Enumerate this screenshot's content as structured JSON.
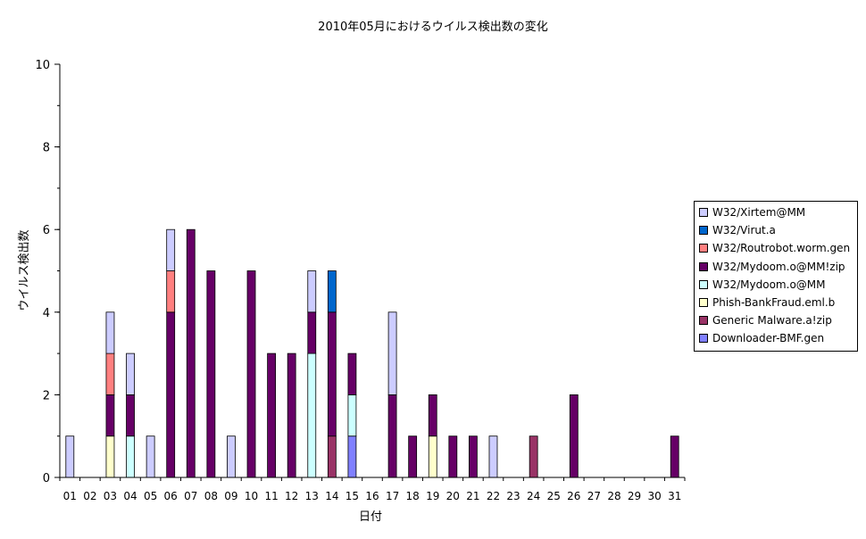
{
  "chart_data": {
    "type": "bar",
    "stacked": true,
    "title": "2010年05月におけるウイルス検出数の変化",
    "xlabel": "日付",
    "ylabel": "ウイルス検出数",
    "ylim": [
      0,
      10
    ],
    "yticks": [
      "0",
      "2",
      "4",
      "6",
      "8",
      "10"
    ],
    "grid": false,
    "legend_position": "right",
    "categories": [
      "01",
      "02",
      "03",
      "04",
      "05",
      "06",
      "07",
      "08",
      "09",
      "10",
      "11",
      "12",
      "13",
      "14",
      "15",
      "16",
      "17",
      "18",
      "19",
      "20",
      "21",
      "22",
      "23",
      "24",
      "25",
      "26",
      "27",
      "28",
      "29",
      "30",
      "31"
    ],
    "series": [
      {
        "name": "Downloader-BMF.gen",
        "color": "#8080ff",
        "values": [
          0,
          0,
          0,
          0,
          0,
          0,
          0,
          0,
          0,
          0,
          0,
          0,
          0,
          0,
          1,
          0,
          0,
          0,
          0,
          0,
          0,
          0,
          0,
          0,
          0,
          0,
          0,
          0,
          0,
          0,
          0
        ]
      },
      {
        "name": "Generic Malware.a!zip",
        "color": "#993366",
        "values": [
          0,
          0,
          0,
          0,
          0,
          0,
          0,
          0,
          0,
          0,
          0,
          0,
          0,
          1,
          0,
          0,
          0,
          0,
          0,
          0,
          0,
          0,
          0,
          1,
          0,
          0,
          0,
          0,
          0,
          0,
          0
        ]
      },
      {
        "name": "Phish-BankFraud.eml.b",
        "color": "#ffffcc",
        "values": [
          0,
          0,
          1,
          0,
          0,
          0,
          0,
          0,
          0,
          0,
          0,
          0,
          0,
          0,
          0,
          0,
          0,
          0,
          1,
          0,
          0,
          0,
          0,
          0,
          0,
          0,
          0,
          0,
          0,
          0,
          0
        ]
      },
      {
        "name": "W32/Mydoom.o@MM",
        "color": "#ccffff",
        "values": [
          0,
          0,
          0,
          1,
          0,
          0,
          0,
          0,
          0,
          0,
          0,
          0,
          3,
          0,
          1,
          0,
          0,
          0,
          0,
          0,
          0,
          0,
          0,
          0,
          0,
          0,
          0,
          0,
          0,
          0,
          0
        ]
      },
      {
        "name": "W32/Mydoom.o@MM!zip",
        "color": "#660066",
        "values": [
          0,
          0,
          1,
          1,
          0,
          4,
          6,
          5,
          0,
          5,
          3,
          3,
          1,
          3,
          1,
          0,
          2,
          1,
          1,
          1,
          1,
          0,
          0,
          0,
          0,
          2,
          0,
          0,
          0,
          0,
          1
        ]
      },
      {
        "name": "W32/Routrobot.worm.gen",
        "color": "#ff8080",
        "values": [
          0,
          0,
          1,
          0,
          0,
          1,
          0,
          0,
          0,
          0,
          0,
          0,
          0,
          0,
          0,
          0,
          0,
          0,
          0,
          0,
          0,
          0,
          0,
          0,
          0,
          0,
          0,
          0,
          0,
          0,
          0
        ]
      },
      {
        "name": "W32/Virut.a",
        "color": "#0066cc",
        "values": [
          0,
          0,
          0,
          0,
          0,
          0,
          0,
          0,
          0,
          0,
          0,
          0,
          0,
          1,
          0,
          0,
          0,
          0,
          0,
          0,
          0,
          0,
          0,
          0,
          0,
          0,
          0,
          0,
          0,
          0,
          0
        ]
      },
      {
        "name": "W32/Xirtem@MM",
        "color": "#ccccff",
        "values": [
          1,
          0,
          1,
          1,
          1,
          1,
          0,
          0,
          1,
          0,
          0,
          0,
          1,
          0,
          0,
          0,
          2,
          0,
          0,
          0,
          0,
          1,
          0,
          0,
          0,
          0,
          0,
          0,
          0,
          0,
          0
        ]
      }
    ]
  }
}
